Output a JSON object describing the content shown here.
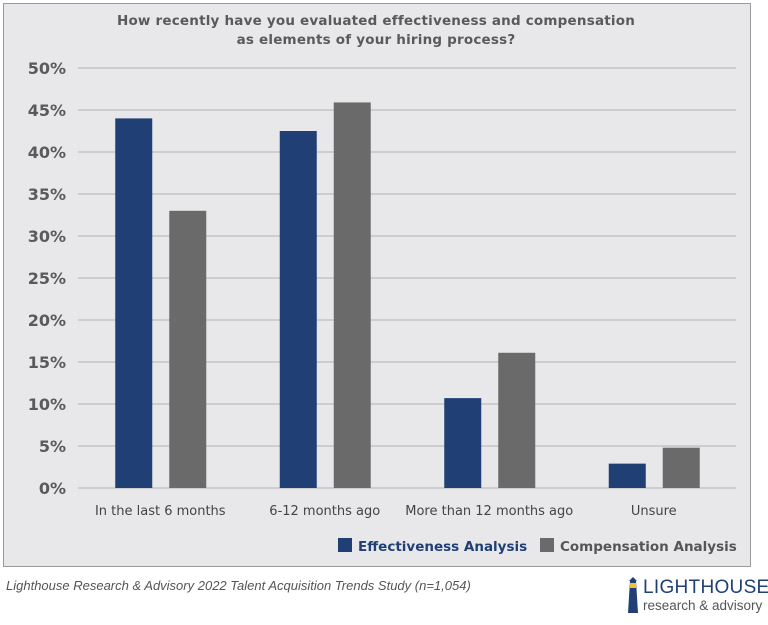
{
  "chart_data": {
    "type": "bar",
    "title": "How recently have you evaluated effectiveness and compensation as elements of your hiring process?",
    "title_lines": [
      "How recently have you evaluated effectiveness and compensation",
      "as elements of your hiring process?"
    ],
    "categories": [
      "In the last 6 months",
      "6-12 months ago",
      "More than 12 months ago",
      "Unsure"
    ],
    "series": [
      {
        "name": "Effectiveness Analysis",
        "color": "#1f3f75",
        "values": [
          44,
          42.5,
          10.7,
          2.9
        ]
      },
      {
        "name": "Compensation Analysis",
        "color": "#6a6a6a",
        "values": [
          33,
          45.9,
          16.1,
          4.8
        ]
      }
    ],
    "ylim": [
      0,
      50
    ],
    "yticks": [
      "0%",
      "5%",
      "10%",
      "15%",
      "20%",
      "25%",
      "30%",
      "35%",
      "40%",
      "45%",
      "50%"
    ],
    "grid": true,
    "legend_position": "bottom-right"
  },
  "source": "Lighthouse Research & Advisory 2022 Talent Acquisition Trends Study (n=1,054)",
  "logo": {
    "line1": "LIGHTHOUSE",
    "line2": "research & advisory",
    "color": "#1f3f75"
  }
}
